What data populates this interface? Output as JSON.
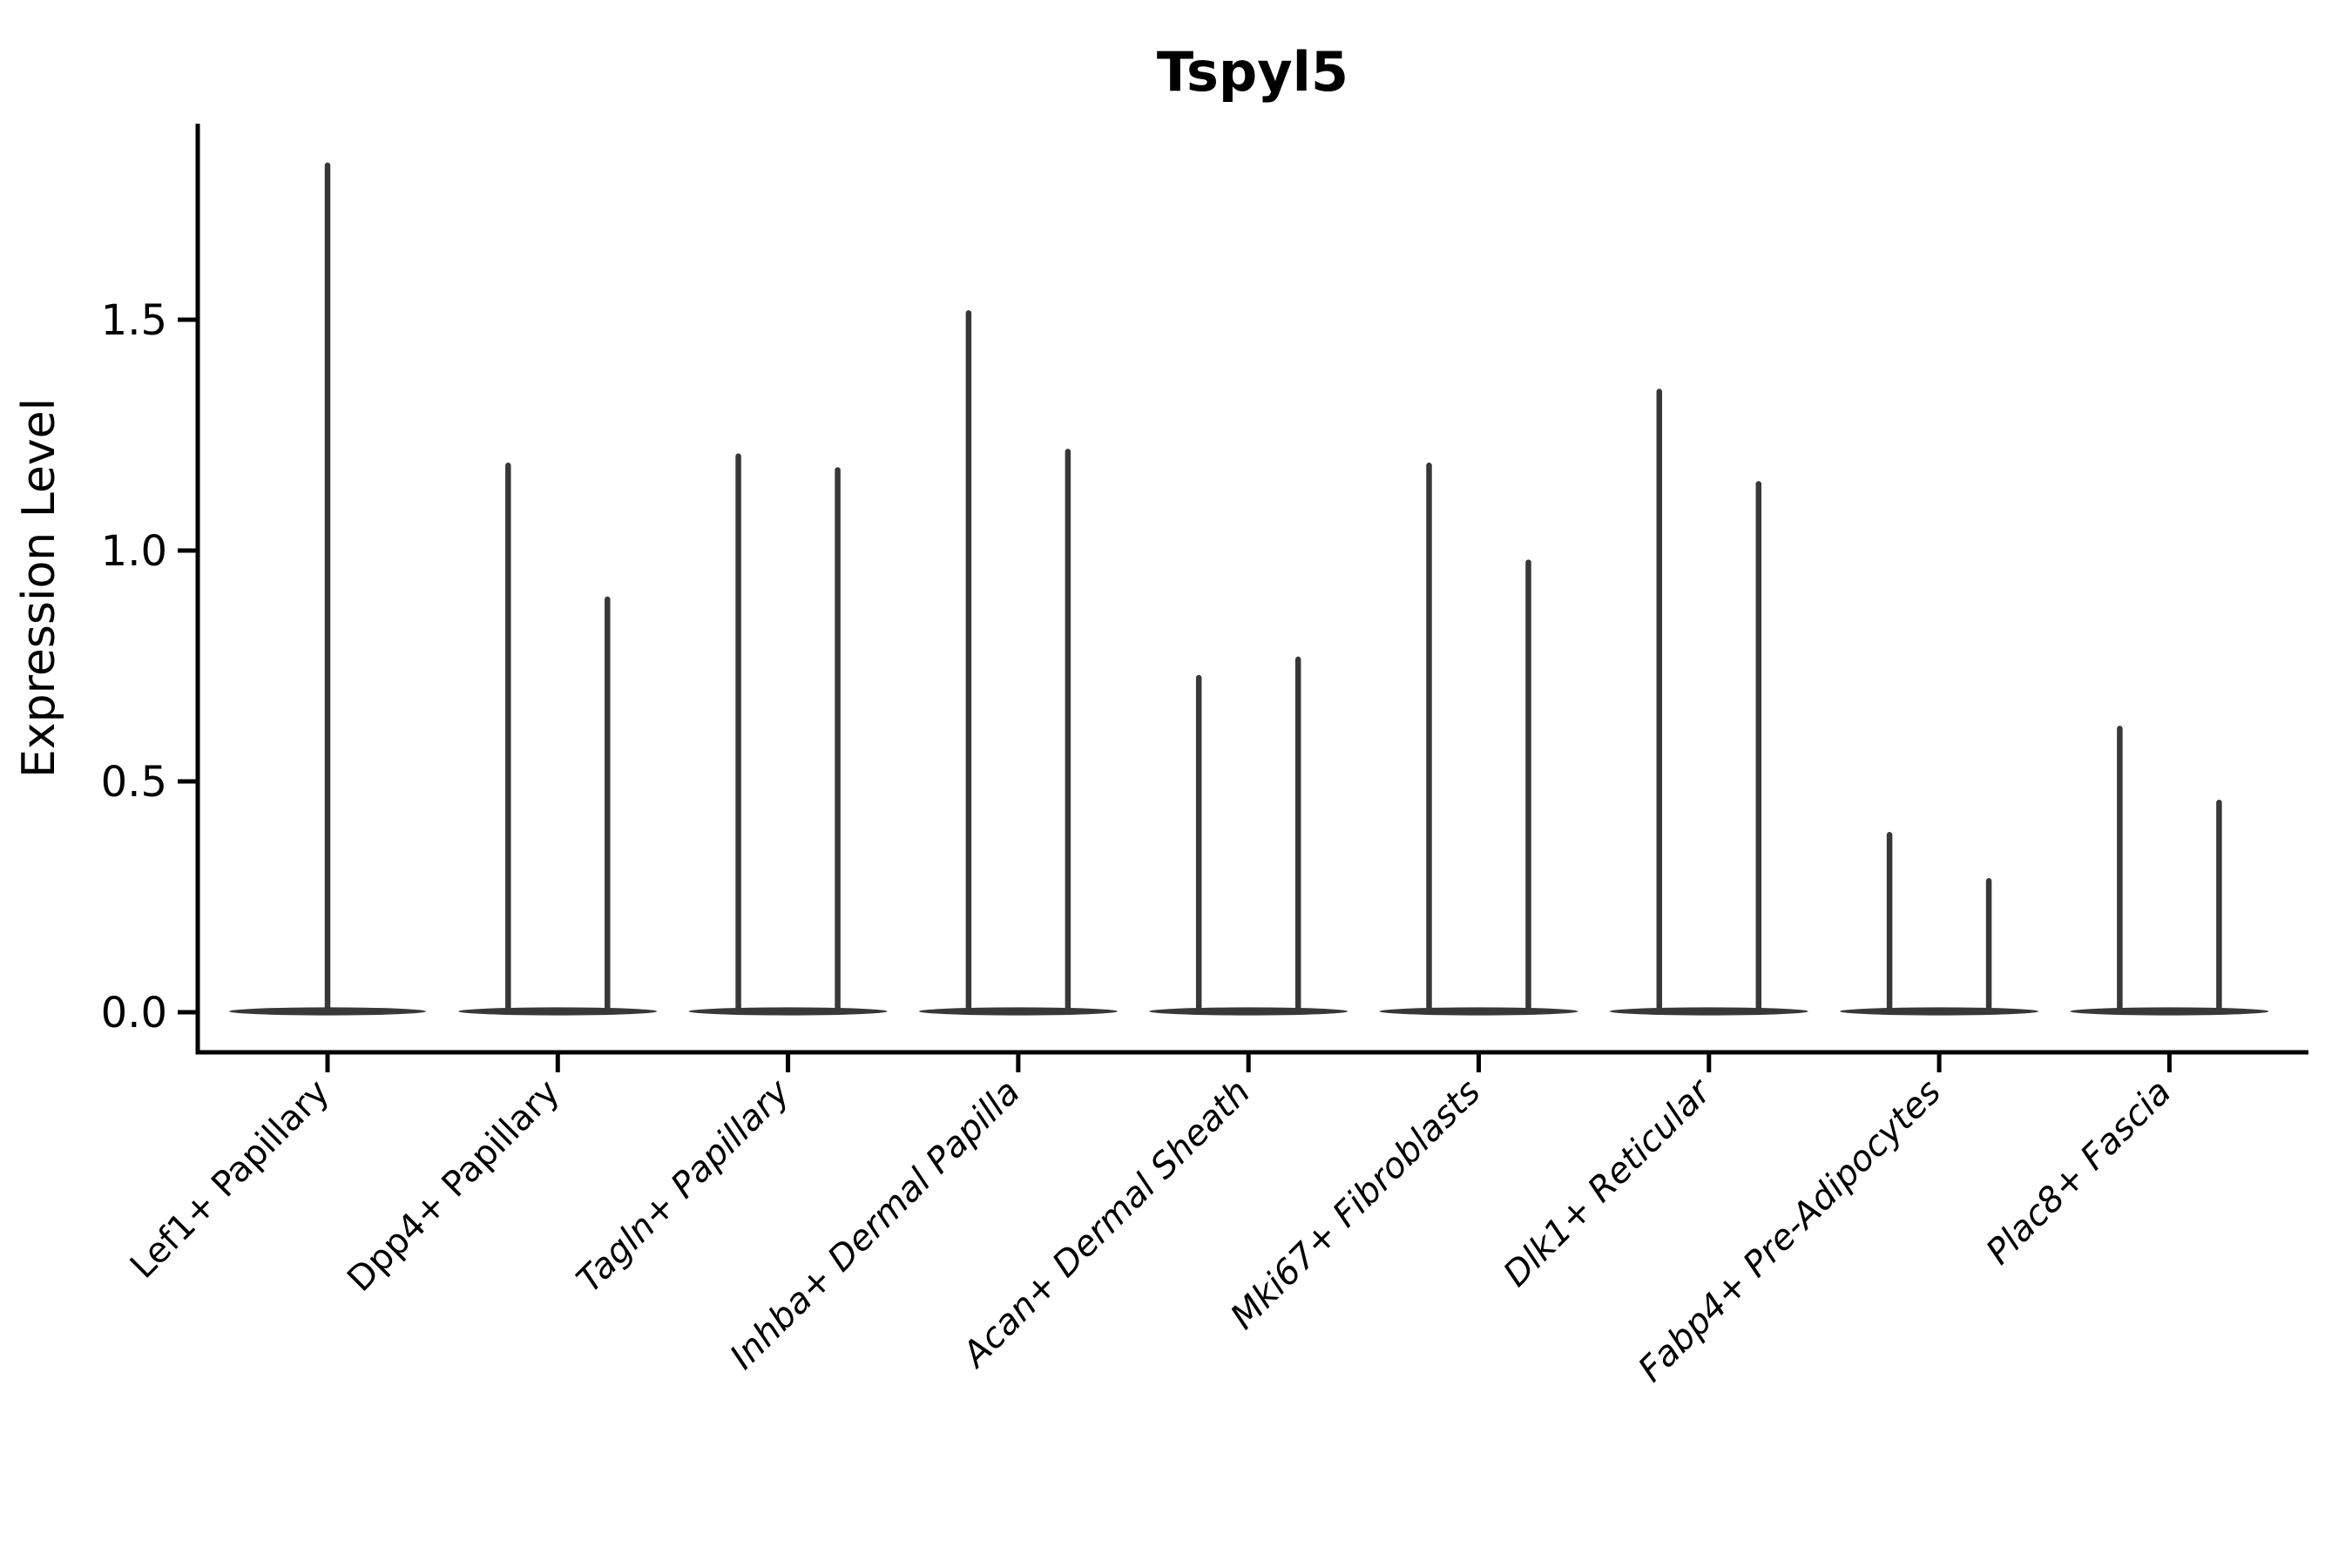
{
  "title": "Tspyl5",
  "chart_data": {
    "type": "violin",
    "title": "Tspyl5",
    "xlabel": "",
    "ylabel": "Expression Level",
    "yticks": [
      0.0,
      0.5,
      1.0,
      1.5
    ],
    "ytick_labels": [
      "0.0",
      "0.5",
      "1.0",
      "1.5"
    ],
    "ylim": [
      0,
      1.92
    ],
    "grid": false,
    "legend": "none",
    "distribution_shape": "mass concentrated at 0 (wide flat base) with a thin spike up to the max expression value",
    "categories": [
      {
        "label": "Lef1+ Papillary",
        "italic": false,
        "violins": [
          {
            "peak": 1.84
          }
        ]
      },
      {
        "label": "Dpp4+ Papillary",
        "italic": false,
        "violins": [
          {
            "peak": 1.19
          },
          {
            "peak": 0.9
          }
        ]
      },
      {
        "label": "Tagln+ Papillary",
        "italic": true,
        "violins": [
          {
            "peak": 1.21
          },
          {
            "peak": 1.18
          }
        ]
      },
      {
        "label": "Inhba+ Dermal Papilla",
        "italic": true,
        "violins": [
          {
            "peak": 1.52
          },
          {
            "peak": 1.22
          }
        ]
      },
      {
        "label": "Acan+ Dermal Sheath",
        "italic": true,
        "violins": [
          {
            "peak": 0.73
          },
          {
            "peak": 0.77
          }
        ]
      },
      {
        "label": "Mki67+ Fibroblasts",
        "italic": true,
        "violins": [
          {
            "peak": 1.19
          },
          {
            "peak": 0.98
          }
        ]
      },
      {
        "label": "Dlk1+ Reticular",
        "italic": true,
        "violins": [
          {
            "peak": 1.35
          },
          {
            "peak": 1.15
          }
        ]
      },
      {
        "label": "Fabp4+ Pre-Adipocytes",
        "italic": true,
        "violins": [
          {
            "peak": 0.39
          },
          {
            "peak": 0.29
          }
        ]
      },
      {
        "label": "Plac8+ Fascia",
        "italic": true,
        "violins": [
          {
            "peak": 0.62
          },
          {
            "peak": 0.46
          }
        ]
      }
    ],
    "colors": {
      "violin": "#383838",
      "axis": "#000000",
      "text": "#000000",
      "background": "#ffffff"
    }
  }
}
